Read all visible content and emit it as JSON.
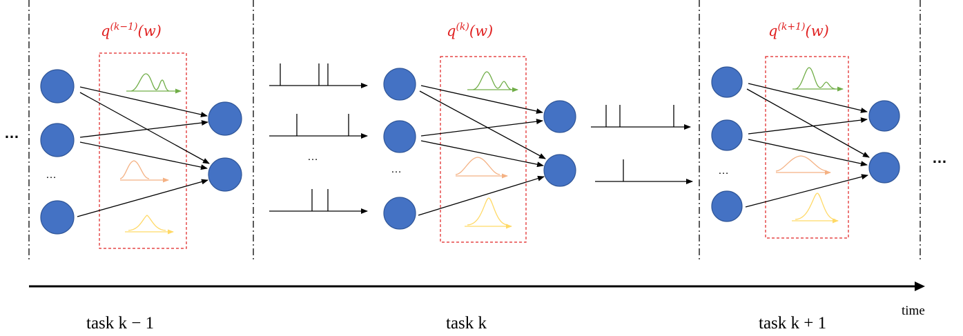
{
  "distribution_labels": {
    "left": {
      "base": "q",
      "sup": "(k−1)",
      "arg": "(w)"
    },
    "center": {
      "base": "q",
      "sup": "(k)",
      "arg": "(w)"
    },
    "right": {
      "base": "q",
      "sup": "(k+1)",
      "arg": "(w)"
    }
  },
  "task_labels": {
    "left": "task k − 1",
    "center": "task k",
    "right": "task k + 1"
  },
  "axis_label": "time",
  "ellipsis": "…",
  "colors": {
    "node": "#4472C4",
    "box": "#E02020",
    "green": "#70AD47",
    "orange": "#F4B183",
    "yellow": "#FFD966"
  }
}
